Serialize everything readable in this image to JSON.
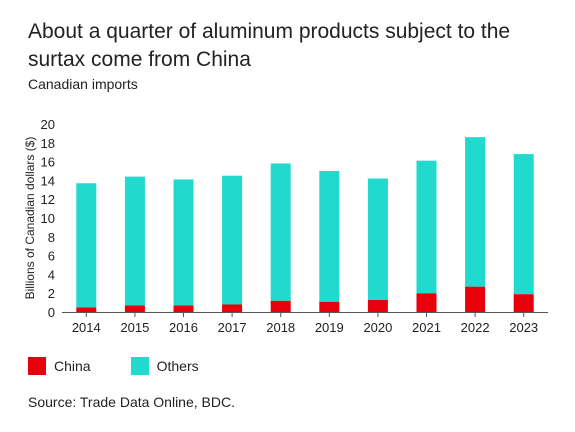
{
  "header": {
    "title": "About a quarter of aluminum products subject to the surtax come from China",
    "subtitle": "Canadian imports"
  },
  "footer": {
    "source": "Source: Trade Data Online, BDC."
  },
  "colors": {
    "china": "#e8000b",
    "others": "#21d9cc",
    "axis": "#555555",
    "text": "#222222"
  },
  "chart_data": {
    "type": "bar",
    "stacked": true,
    "categories": [
      "2014",
      "2015",
      "2016",
      "2017",
      "2018",
      "2019",
      "2020",
      "2021",
      "2022",
      "2023"
    ],
    "series": [
      {
        "name": "China",
        "values": [
          0.5,
          0.7,
          0.7,
          0.8,
          1.2,
          1.1,
          1.3,
          2.0,
          2.7,
          1.9
        ]
      },
      {
        "name": "Others",
        "values": [
          13.2,
          13.7,
          13.4,
          13.7,
          14.6,
          13.9,
          12.9,
          14.1,
          15.9,
          14.9
        ]
      }
    ],
    "ylabel": "Billions of Canadian dollars ($)",
    "ylim": [
      0,
      20
    ],
    "yticks": [
      0,
      2,
      4,
      6,
      8,
      10,
      12,
      14,
      16,
      18,
      20
    ],
    "grid": false,
    "legend_position": "bottom-left"
  }
}
